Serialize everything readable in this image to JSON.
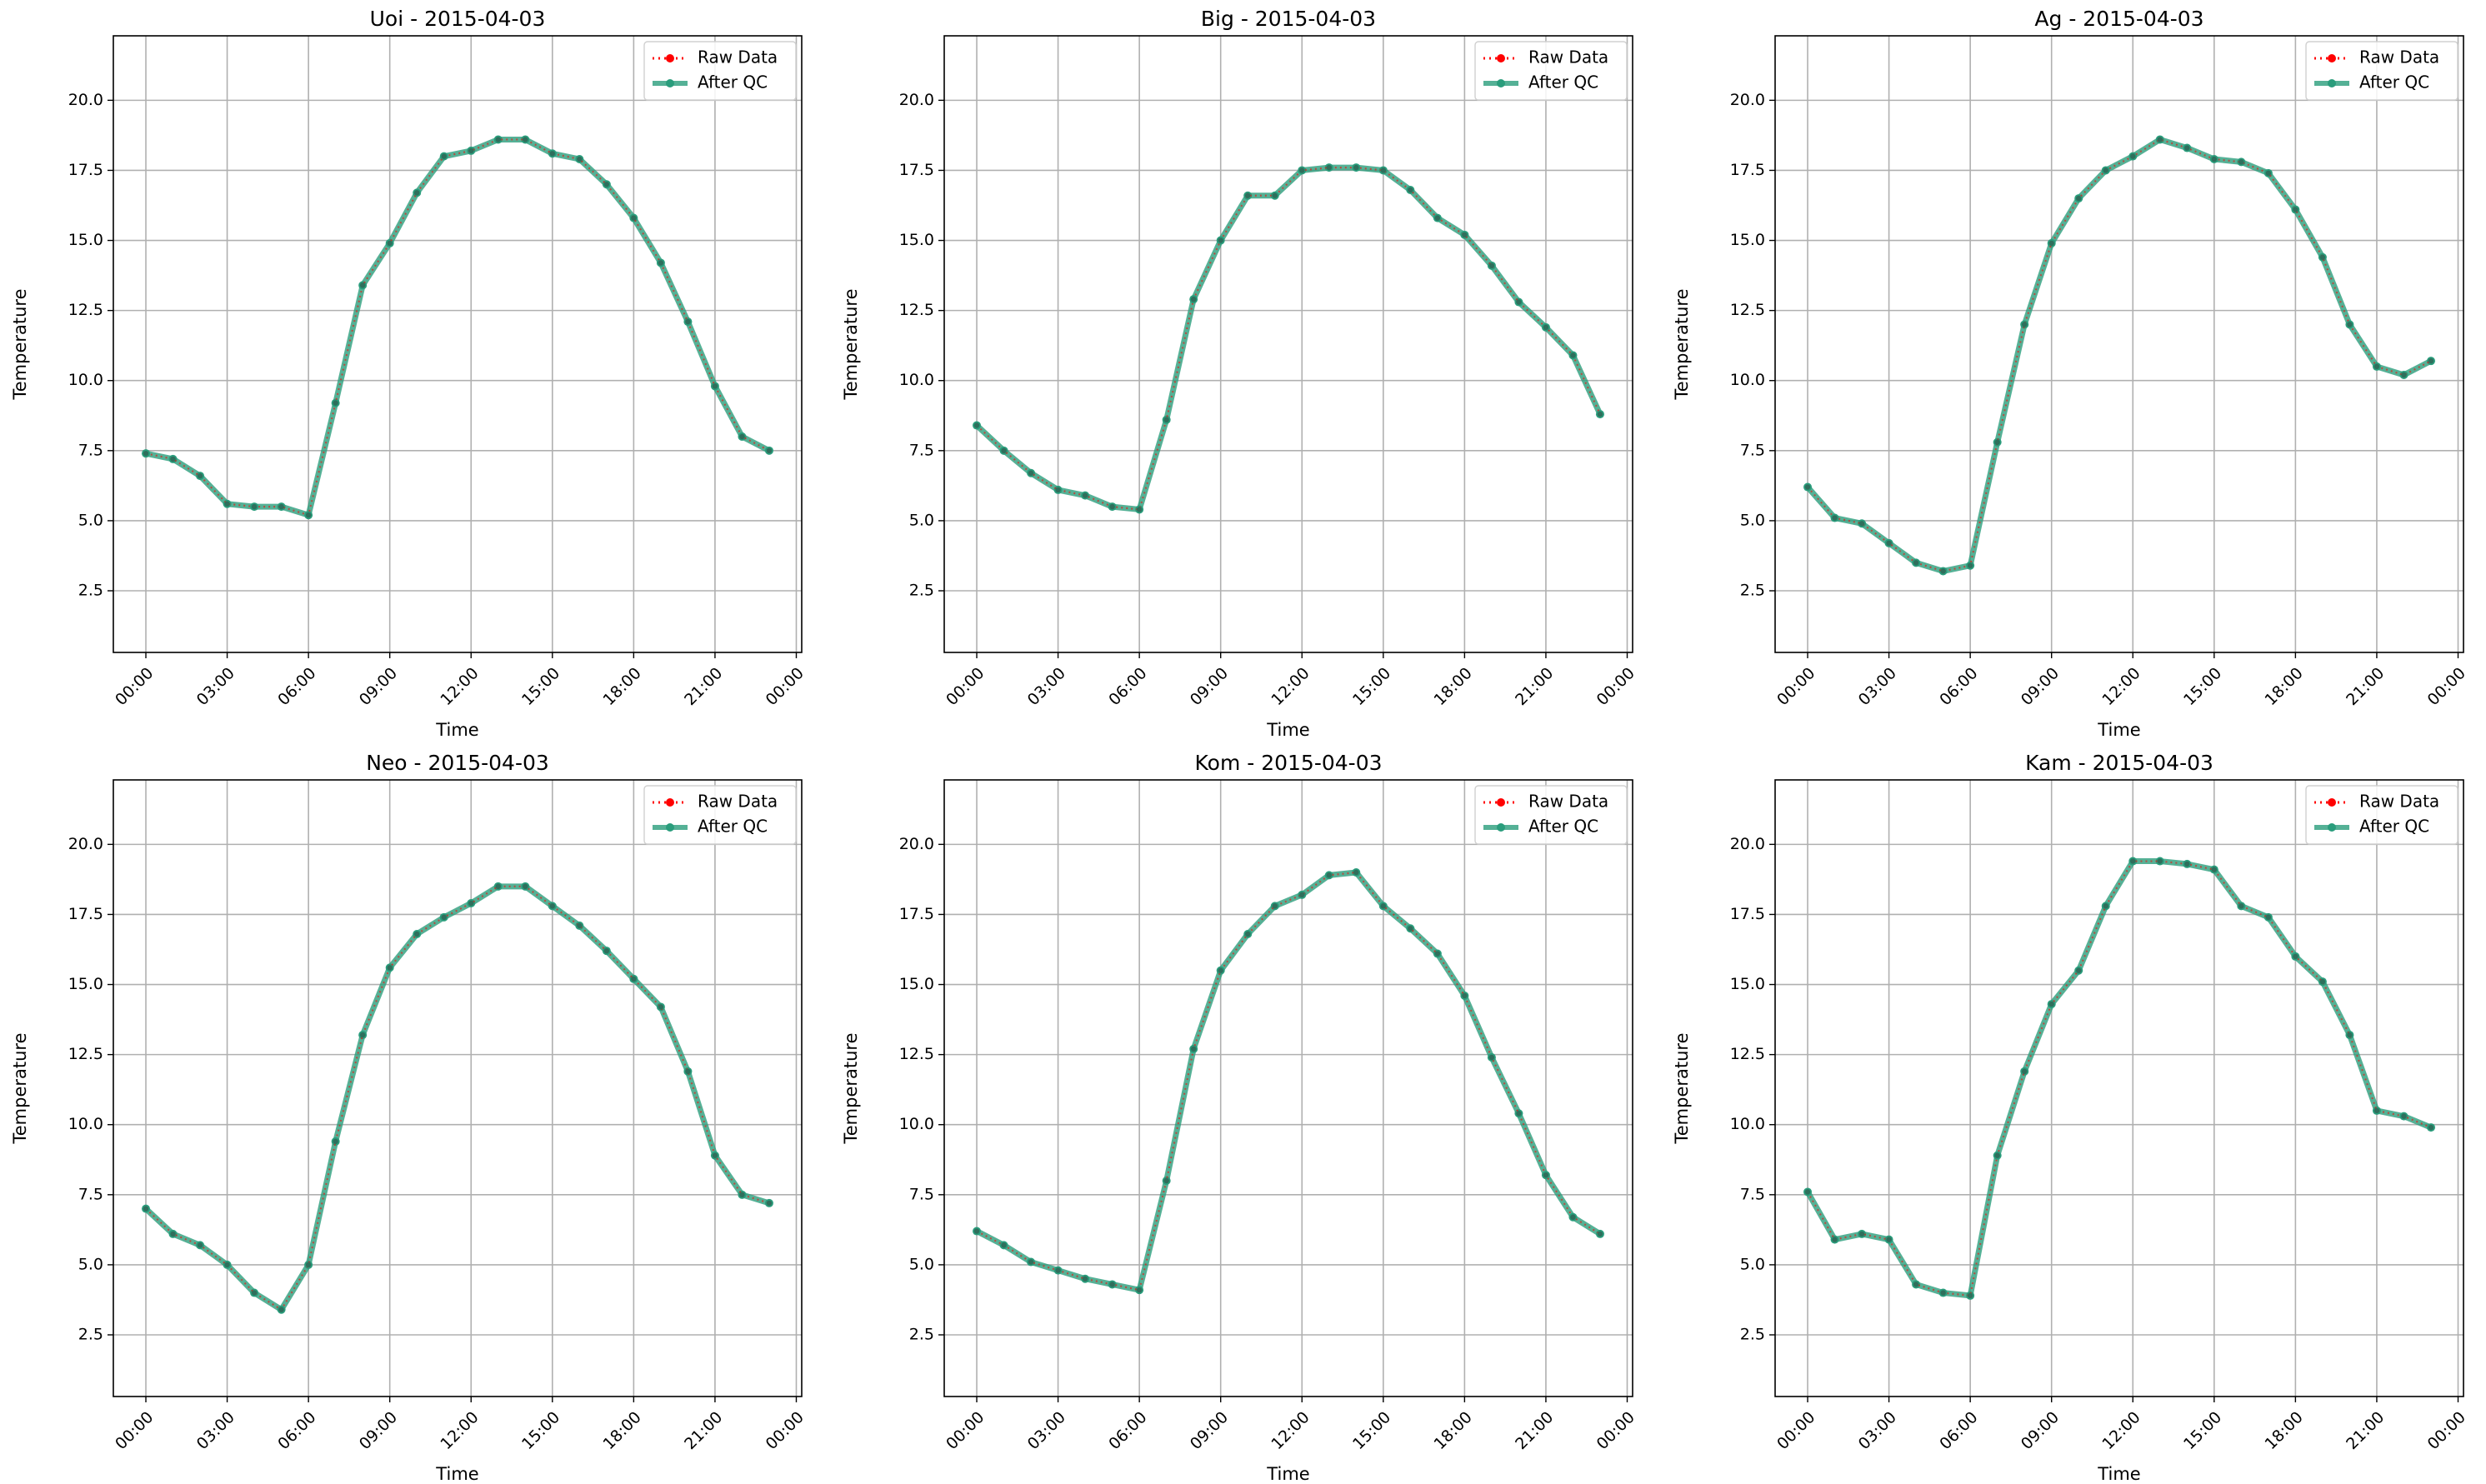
{
  "legend": {
    "raw_label": "Raw Data",
    "qc_label": "After QC"
  },
  "colors": {
    "raw": "#ff0000",
    "qc": "#2a9d7c",
    "marker": "#2f6f5c",
    "grid": "#b0b0b0",
    "axes": "#000000"
  },
  "chart_data": [
    {
      "type": "line",
      "title": "Uoi - 2015-04-03",
      "xlabel": "Time",
      "ylabel": "Temperature",
      "x_hours": [
        0,
        1,
        2,
        3,
        4,
        5,
        6,
        7,
        8,
        9,
        10,
        11,
        12,
        13,
        14,
        15,
        16,
        17,
        18,
        19,
        20,
        21,
        22,
        23
      ],
      "x_ticks": [
        "00:00",
        "03:00",
        "06:00",
        "09:00",
        "12:00",
        "15:00",
        "18:00",
        "21:00",
        "00:00"
      ],
      "y_ticks": [
        2.5,
        5.0,
        7.5,
        10.0,
        12.5,
        15.0,
        17.5,
        20.0
      ],
      "ylim": [
        0.3,
        22.3
      ],
      "xlim_hours": [
        -1.2,
        24.2
      ],
      "grid": true,
      "legend_position": "top-right",
      "series": [
        {
          "name": "Raw Data",
          "values": [
            7.4,
            7.2,
            6.6,
            5.6,
            5.5,
            5.5,
            5.2,
            9.2,
            13.4,
            14.9,
            16.7,
            18.0,
            18.2,
            18.6,
            18.6,
            18.1,
            17.9,
            17.0,
            15.8,
            14.2,
            12.1,
            9.8,
            8.0,
            7.5
          ]
        },
        {
          "name": "After QC",
          "values": [
            7.4,
            7.2,
            6.6,
            5.6,
            5.5,
            5.5,
            5.2,
            9.2,
            13.4,
            14.9,
            16.7,
            18.0,
            18.2,
            18.6,
            18.6,
            18.1,
            17.9,
            17.0,
            15.8,
            14.2,
            12.1,
            9.8,
            8.0,
            7.5
          ]
        }
      ]
    },
    {
      "type": "line",
      "title": "Big - 2015-04-03",
      "xlabel": "Time",
      "ylabel": "Temperature",
      "x_hours": [
        0,
        1,
        2,
        3,
        4,
        5,
        6,
        7,
        8,
        9,
        10,
        11,
        12,
        13,
        14,
        15,
        16,
        17,
        18,
        19,
        20,
        21,
        22,
        23
      ],
      "x_ticks": [
        "00:00",
        "03:00",
        "06:00",
        "09:00",
        "12:00",
        "15:00",
        "18:00",
        "21:00",
        "00:00"
      ],
      "y_ticks": [
        2.5,
        5.0,
        7.5,
        10.0,
        12.5,
        15.0,
        17.5,
        20.0
      ],
      "ylim": [
        0.3,
        22.3
      ],
      "xlim_hours": [
        -1.2,
        24.2
      ],
      "grid": true,
      "legend_position": "top-right",
      "series": [
        {
          "name": "Raw Data",
          "values": [
            8.4,
            7.5,
            6.7,
            6.1,
            5.9,
            5.5,
            5.4,
            8.6,
            12.9,
            15.0,
            16.6,
            16.6,
            17.5,
            17.6,
            17.6,
            17.5,
            16.8,
            15.8,
            15.2,
            14.1,
            12.8,
            11.9,
            10.9,
            8.8
          ]
        },
        {
          "name": "After QC",
          "values": [
            8.4,
            7.5,
            6.7,
            6.1,
            5.9,
            5.5,
            5.4,
            8.6,
            12.9,
            15.0,
            16.6,
            16.6,
            17.5,
            17.6,
            17.6,
            17.5,
            16.8,
            15.8,
            15.2,
            14.1,
            12.8,
            11.9,
            10.9,
            8.8
          ]
        }
      ]
    },
    {
      "type": "line",
      "title": "Ag - 2015-04-03",
      "xlabel": "Time",
      "ylabel": "Temperature",
      "x_hours": [
        0,
        1,
        2,
        3,
        4,
        5,
        6,
        7,
        8,
        9,
        10,
        11,
        12,
        13,
        14,
        15,
        16,
        17,
        18,
        19,
        20,
        21,
        22,
        23
      ],
      "x_ticks": [
        "00:00",
        "03:00",
        "06:00",
        "09:00",
        "12:00",
        "15:00",
        "18:00",
        "21:00",
        "00:00"
      ],
      "y_ticks": [
        2.5,
        5.0,
        7.5,
        10.0,
        12.5,
        15.0,
        17.5,
        20.0
      ],
      "ylim": [
        0.3,
        22.3
      ],
      "xlim_hours": [
        -1.2,
        24.2
      ],
      "grid": true,
      "legend_position": "top-right",
      "series": [
        {
          "name": "Raw Data",
          "values": [
            6.2,
            5.1,
            4.9,
            4.2,
            3.5,
            3.2,
            3.4,
            7.8,
            12.0,
            14.9,
            16.5,
            17.5,
            18.0,
            18.6,
            18.3,
            17.9,
            17.8,
            17.4,
            16.1,
            14.4,
            12.0,
            10.5,
            10.2,
            10.7
          ]
        },
        {
          "name": "After QC",
          "values": [
            6.2,
            5.1,
            4.9,
            4.2,
            3.5,
            3.2,
            3.4,
            7.8,
            12.0,
            14.9,
            16.5,
            17.5,
            18.0,
            18.6,
            18.3,
            17.9,
            17.8,
            17.4,
            16.1,
            14.4,
            12.0,
            10.5,
            10.2,
            10.7
          ]
        }
      ]
    },
    {
      "type": "line",
      "title": "Neo - 2015-04-03",
      "xlabel": "Time",
      "ylabel": "Temperature",
      "x_hours": [
        0,
        1,
        2,
        3,
        4,
        5,
        6,
        7,
        8,
        9,
        10,
        11,
        12,
        13,
        14,
        15,
        16,
        17,
        18,
        19,
        20,
        21,
        22,
        23
      ],
      "x_ticks": [
        "00:00",
        "03:00",
        "06:00",
        "09:00",
        "12:00",
        "15:00",
        "18:00",
        "21:00",
        "00:00"
      ],
      "y_ticks": [
        2.5,
        5.0,
        7.5,
        10.0,
        12.5,
        15.0,
        17.5,
        20.0
      ],
      "ylim": [
        0.3,
        22.3
      ],
      "xlim_hours": [
        -1.2,
        24.2
      ],
      "grid": true,
      "legend_position": "top-right",
      "series": [
        {
          "name": "Raw Data",
          "values": [
            7.0,
            6.1,
            5.7,
            5.0,
            4.0,
            3.4,
            5.0,
            9.4,
            13.2,
            15.6,
            16.8,
            17.4,
            17.9,
            18.5,
            18.5,
            17.8,
            17.1,
            16.2,
            15.2,
            14.2,
            11.9,
            8.9,
            7.5,
            7.2
          ]
        },
        {
          "name": "After QC",
          "values": [
            7.0,
            6.1,
            5.7,
            5.0,
            4.0,
            3.4,
            5.0,
            9.4,
            13.2,
            15.6,
            16.8,
            17.4,
            17.9,
            18.5,
            18.5,
            17.8,
            17.1,
            16.2,
            15.2,
            14.2,
            11.9,
            8.9,
            7.5,
            7.2
          ]
        }
      ]
    },
    {
      "type": "line",
      "title": "Kom - 2015-04-03",
      "xlabel": "Time",
      "ylabel": "Temperature",
      "x_hours": [
        0,
        1,
        2,
        3,
        4,
        5,
        6,
        7,
        8,
        9,
        10,
        11,
        12,
        13,
        14,
        15,
        16,
        17,
        18,
        19,
        20,
        21,
        22,
        23
      ],
      "x_ticks": [
        "00:00",
        "03:00",
        "06:00",
        "09:00",
        "12:00",
        "15:00",
        "18:00",
        "21:00",
        "00:00"
      ],
      "y_ticks": [
        2.5,
        5.0,
        7.5,
        10.0,
        12.5,
        15.0,
        17.5,
        20.0
      ],
      "ylim": [
        0.3,
        22.3
      ],
      "xlim_hours": [
        -1.2,
        24.2
      ],
      "grid": true,
      "legend_position": "top-right",
      "series": [
        {
          "name": "Raw Data",
          "values": [
            6.2,
            5.7,
            5.1,
            4.8,
            4.5,
            4.3,
            4.1,
            8.0,
            12.7,
            15.5,
            16.8,
            17.8,
            18.2,
            18.9,
            19.0,
            17.8,
            17.0,
            16.1,
            14.6,
            12.4,
            10.4,
            8.2,
            6.7,
            6.1
          ]
        },
        {
          "name": "After QC",
          "values": [
            6.2,
            5.7,
            5.1,
            4.8,
            4.5,
            4.3,
            4.1,
            8.0,
            12.7,
            15.5,
            16.8,
            17.8,
            18.2,
            18.9,
            19.0,
            17.8,
            17.0,
            16.1,
            14.6,
            12.4,
            10.4,
            8.2,
            6.7,
            6.1
          ]
        }
      ]
    },
    {
      "type": "line",
      "title": "Kam - 2015-04-03",
      "xlabel": "Time",
      "ylabel": "Temperature",
      "x_hours": [
        0,
        1,
        2,
        3,
        4,
        5,
        6,
        7,
        8,
        9,
        10,
        11,
        12,
        13,
        14,
        15,
        16,
        17,
        18,
        19,
        20,
        21,
        22,
        23
      ],
      "x_ticks": [
        "00:00",
        "03:00",
        "06:00",
        "09:00",
        "12:00",
        "15:00",
        "18:00",
        "21:00",
        "00:00"
      ],
      "y_ticks": [
        2.5,
        5.0,
        7.5,
        10.0,
        12.5,
        15.0,
        17.5,
        20.0
      ],
      "ylim": [
        0.3,
        22.3
      ],
      "xlim_hours": [
        -1.2,
        24.2
      ],
      "grid": true,
      "legend_position": "top-right",
      "series": [
        {
          "name": "Raw Data",
          "values": [
            7.6,
            5.9,
            6.1,
            5.9,
            4.3,
            4.0,
            3.9,
            8.9,
            11.9,
            14.3,
            15.5,
            17.8,
            19.4,
            19.4,
            19.3,
            19.1,
            17.8,
            17.4,
            16.0,
            15.1,
            13.2,
            10.5,
            10.3,
            9.9
          ]
        },
        {
          "name": "After QC",
          "values": [
            7.6,
            5.9,
            6.1,
            5.9,
            4.3,
            4.0,
            3.9,
            8.9,
            11.9,
            14.3,
            15.5,
            17.8,
            19.4,
            19.4,
            19.3,
            19.1,
            17.8,
            17.4,
            16.0,
            15.1,
            13.2,
            10.5,
            10.3,
            9.9
          ]
        }
      ]
    }
  ]
}
